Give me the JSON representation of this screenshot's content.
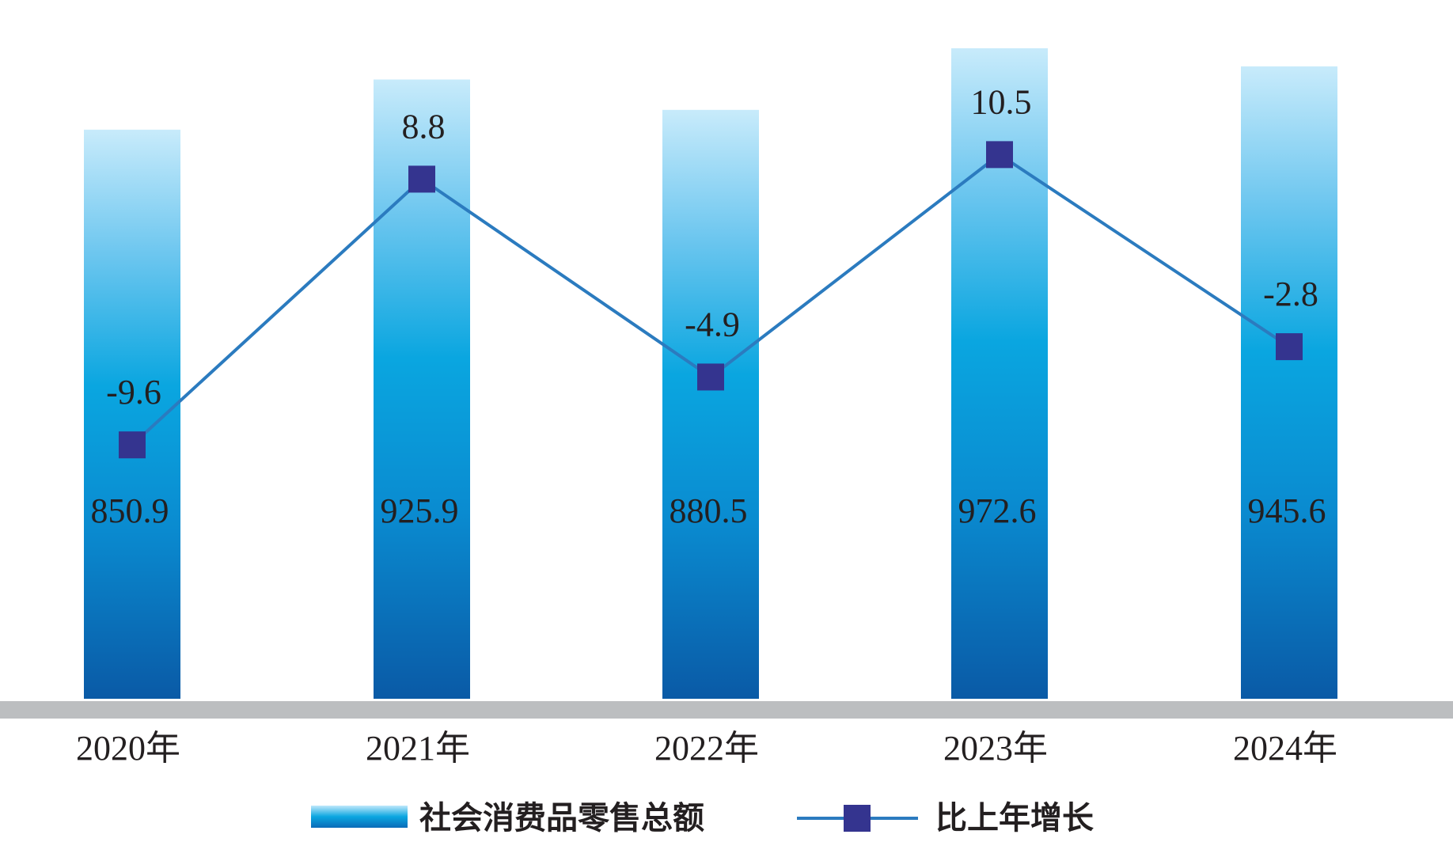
{
  "chart_data": {
    "type": "bar",
    "categories": [
      "2020年",
      "2021年",
      "2022年",
      "2023年",
      "2024年"
    ],
    "series": [
      {
        "name": "社会消费品零售总额",
        "type": "bar",
        "values": [
          850.9,
          925.9,
          880.5,
          972.6,
          945.6
        ],
        "color": "#0aa6e0"
      },
      {
        "name": "比上年增长",
        "type": "line",
        "values": [
          -9.6,
          8.8,
          -4.9,
          10.5,
          -2.8
        ],
        "color": "#2b7bbf",
        "marker_color": "#34348f"
      }
    ],
    "legend": [
      "社会消费品零售总额",
      "比上年增长"
    ],
    "legend_position": "bottom",
    "grid": false
  }
}
